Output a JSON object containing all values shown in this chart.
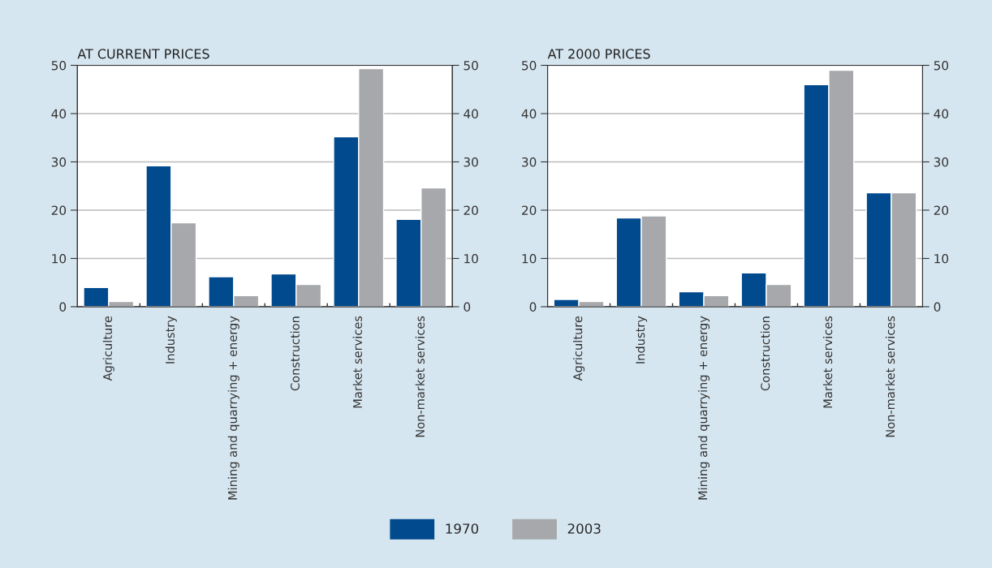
{
  "chart_data": [
    {
      "type": "bar",
      "title": "AT CURRENT PRICES",
      "categories": [
        "Agriculture",
        "Industry",
        "Mining and quarrying + energy",
        "Construction",
        "Market services",
        "Non-market services"
      ],
      "series": [
        {
          "name": "1970",
          "color": "#004a8d",
          "values": [
            4.0,
            29.2,
            6.2,
            6.8,
            35.2,
            18.1
          ]
        },
        {
          "name": "2003",
          "color": "#a7a8ab",
          "values": [
            1.1,
            17.4,
            2.3,
            4.6,
            49.3,
            24.6
          ]
        }
      ],
      "ylim": [
        0,
        50
      ],
      "yticks": [
        0,
        10,
        20,
        30,
        40,
        50
      ],
      "y2lim": [
        0,
        50
      ],
      "y2ticks": [
        0,
        10,
        20,
        30,
        40,
        50
      ],
      "grid": "y",
      "legend": "bottom"
    },
    {
      "type": "bar",
      "title": "AT 2000 PRICES",
      "categories": [
        "Agriculture",
        "Industry",
        "Mining and quarrying + energy",
        "Construction",
        "Market services",
        "Non-market services"
      ],
      "series": [
        {
          "name": "1970",
          "color": "#004a8d",
          "values": [
            1.5,
            18.4,
            3.1,
            7.0,
            46.0,
            23.6
          ]
        },
        {
          "name": "2003",
          "color": "#a7a8ab",
          "values": [
            1.1,
            18.8,
            2.3,
            4.6,
            49.0,
            23.6
          ]
        }
      ],
      "ylim": [
        0,
        50
      ],
      "yticks": [
        0,
        10,
        20,
        30,
        40,
        50
      ],
      "y2lim": [
        0,
        50
      ],
      "y2ticks": [
        0,
        10,
        20,
        30,
        40,
        50
      ],
      "grid": "y"
    }
  ]
}
